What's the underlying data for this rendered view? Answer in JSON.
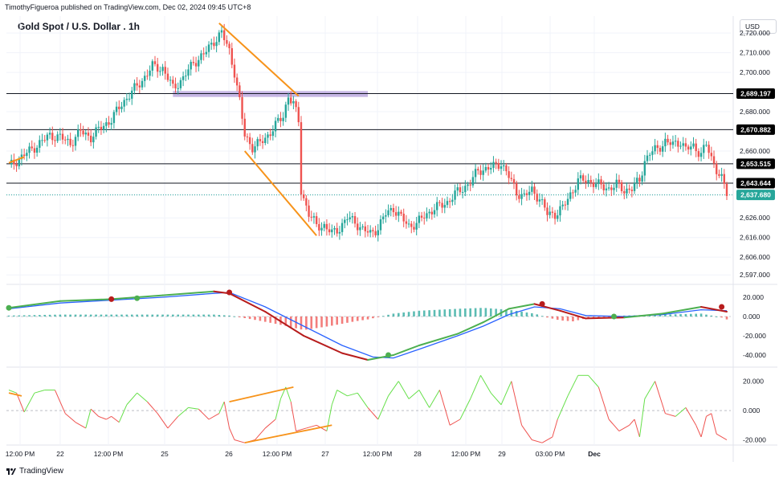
{
  "header": {
    "credit": "TimothyFigueroa published on TradingView.com, Dec 02, 2024 09:45 UTC+8",
    "title": "Gold Spot / U.S. Dollar . 1h",
    "currency": "USD"
  },
  "footer": {
    "brand": "TradingView"
  },
  "colors": {
    "bull": "#26a69a",
    "bear": "#ef5350",
    "pattern": "#f7931a",
    "zone": "#b39ddb",
    "wt_green": "#4caf50",
    "wt_blue": "#2962ff",
    "wt_red": "#b71c1c",
    "hist_pos": "#26a69a",
    "hist_neg": "#ef5350",
    "osc_up": "#66e04a",
    "osc_down": "#ef5350"
  },
  "chart_data": [
    {
      "type": "candlestick",
      "name": "price",
      "title": "Gold Spot / U.S. Dollar . 1h",
      "yticks": [
        2720,
        2710,
        2700,
        2689.197,
        2680,
        2670.882,
        2660,
        2653.515,
        2643.644,
        2637.68,
        2626,
        2616,
        2606,
        2597
      ],
      "ytick_labels": [
        "2,720.000",
        "2,710.000",
        "2,700.000",
        "2,689.197",
        "2,680.000",
        "2,670.882",
        "2,660.000",
        "2,653.515",
        "2,643.644",
        "2,637.680",
        "2,626.000",
        "2,616.000",
        "2,606.000",
        "2,597.000"
      ],
      "ylim": [
        2593,
        2727
      ],
      "grid": true,
      "horizontal_levels": [
        2689.197,
        2670.882,
        2653.515,
        2643.644
      ],
      "current_price": 2637.68,
      "zone": {
        "from": 2687.5,
        "to": 2690.5
      },
      "xticks": [
        "12:00 PM",
        "22",
        "12:00 PM",
        "25",
        "26",
        "12:00 PM",
        "27",
        "12:00 PM",
        "28",
        "12:00 PM",
        "29",
        "03:00 PM",
        "Dec"
      ],
      "key_points": [
        [
          0,
          2652
        ],
        [
          4,
          2656
        ],
        [
          8,
          2660
        ],
        [
          12,
          2664
        ],
        [
          16,
          2668
        ],
        [
          20,
          2667
        ],
        [
          24,
          2664
        ],
        [
          28,
          2670
        ],
        [
          32,
          2667
        ],
        [
          36,
          2672
        ],
        [
          40,
          2676
        ],
        [
          44,
          2684
        ],
        [
          48,
          2690
        ],
        [
          52,
          2696
        ],
        [
          56,
          2703
        ],
        [
          60,
          2702
        ],
        [
          64,
          2692
        ],
        [
          68,
          2697
        ],
        [
          72,
          2705
        ],
        [
          76,
          2709
        ],
        [
          80,
          2716
        ],
        [
          83,
          2720
        ],
        [
          86,
          2711
        ],
        [
          88,
          2700
        ],
        [
          90,
          2685
        ],
        [
          92,
          2668
        ],
        [
          95,
          2662
        ],
        [
          98,
          2664
        ],
        [
          101,
          2668
        ],
        [
          104,
          2673
        ],
        [
          107,
          2678
        ],
        [
          109,
          2688
        ],
        [
          111,
          2684
        ],
        [
          113,
          2675
        ],
        [
          114,
          2640
        ],
        [
          117,
          2628
        ],
        [
          120,
          2622
        ],
        [
          123,
          2622
        ],
        [
          126,
          2618
        ],
        [
          129,
          2621
        ],
        [
          132,
          2626
        ],
        [
          135,
          2624
        ],
        [
          138,
          2620
        ],
        [
          141,
          2618
        ],
        [
          144,
          2621
        ],
        [
          147,
          2628
        ],
        [
          150,
          2631
        ],
        [
          153,
          2626
        ],
        [
          156,
          2622
        ],
        [
          159,
          2623
        ],
        [
          162,
          2627
        ],
        [
          165,
          2630
        ],
        [
          168,
          2632
        ],
        [
          171,
          2634
        ],
        [
          174,
          2638
        ],
        [
          177,
          2641
        ],
        [
          180,
          2644
        ],
        [
          183,
          2650
        ],
        [
          186,
          2651
        ],
        [
          189,
          2652
        ],
        [
          192,
          2654
        ],
        [
          195,
          2647
        ],
        [
          198,
          2639
        ],
        [
          201,
          2637
        ],
        [
          204,
          2640
        ],
        [
          207,
          2636
        ],
        [
          210,
          2628
        ],
        [
          213,
          2628
        ],
        [
          216,
          2631
        ],
        [
          219,
          2638
        ],
        [
          222,
          2645
        ],
        [
          225,
          2645
        ],
        [
          228,
          2644
        ],
        [
          231,
          2642
        ],
        [
          234,
          2641
        ],
        [
          237,
          2643
        ],
        [
          240,
          2640
        ],
        [
          243,
          2641
        ],
        [
          246,
          2645
        ],
        [
          248,
          2655
        ],
        [
          250,
          2659
        ],
        [
          253,
          2661
        ],
        [
          256,
          2665
        ],
        [
          259,
          2663
        ],
        [
          262,
          2665
        ],
        [
          264,
          2661
        ],
        [
          267,
          2662
        ],
        [
          270,
          2659
        ],
        [
          272,
          2663
        ],
        [
          274,
          2656
        ],
        [
          276,
          2651
        ],
        [
          278,
          2646
        ],
        [
          280,
          2638
        ]
      ]
    },
    {
      "type": "line",
      "name": "wave-oscillator",
      "yticks": [
        20,
        0,
        -20,
        -40
      ],
      "ytick_labels": [
        "20.000",
        "0.000",
        "-20.000",
        "-40.000"
      ],
      "ylim": [
        -50,
        30
      ],
      "series": [
        {
          "key": "fast",
          "points": [
            [
              0,
              9
            ],
            [
              20,
              16
            ],
            [
              40,
              18
            ],
            [
              60,
              22
            ],
            [
              80,
              26
            ],
            [
              86,
              24
            ],
            [
              100,
              5
            ],
            [
              115,
              -20
            ],
            [
              130,
              -38
            ],
            [
              140,
              -45
            ],
            [
              150,
              -40
            ],
            [
              160,
              -30
            ],
            [
              175,
              -18
            ],
            [
              185,
              -6
            ],
            [
              195,
              8
            ],
            [
              205,
              13
            ],
            [
              215,
              6
            ],
            [
              225,
              -2
            ],
            [
              240,
              -1
            ],
            [
              255,
              3
            ],
            [
              270,
              10
            ],
            [
              280,
              5
            ]
          ]
        },
        {
          "key": "slow",
          "points": [
            [
              0,
              8
            ],
            [
              20,
              14
            ],
            [
              40,
              17
            ],
            [
              60,
              20
            ],
            [
              80,
              24
            ],
            [
              86,
              25
            ],
            [
              100,
              10
            ],
            [
              115,
              -10
            ],
            [
              130,
              -30
            ],
            [
              142,
              -42
            ],
            [
              150,
              -43
            ],
            [
              160,
              -34
            ],
            [
              175,
              -20
            ],
            [
              185,
              -10
            ],
            [
              195,
              2
            ],
            [
              205,
              10
            ],
            [
              215,
              8
            ],
            [
              225,
              1
            ],
            [
              240,
              0
            ],
            [
              255,
              2
            ],
            [
              270,
              7
            ],
            [
              280,
              6
            ]
          ]
        }
      ],
      "histogram": [
        [
          0,
          1
        ],
        [
          20,
          2
        ],
        [
          40,
          2
        ],
        [
          60,
          2
        ],
        [
          80,
          2
        ],
        [
          86,
          1
        ],
        [
          95,
          -3
        ],
        [
          105,
          -8
        ],
        [
          115,
          -14
        ],
        [
          125,
          -10
        ],
        [
          135,
          -5
        ],
        [
          140,
          -3
        ],
        [
          150,
          3
        ],
        [
          160,
          6
        ],
        [
          175,
          8
        ],
        [
          185,
          9
        ],
        [
          195,
          7
        ],
        [
          205,
          3
        ],
        [
          210,
          -1
        ],
        [
          215,
          -4
        ],
        [
          220,
          -5
        ],
        [
          225,
          -2
        ],
        [
          240,
          1
        ],
        [
          255,
          2
        ],
        [
          270,
          3
        ],
        [
          278,
          -1
        ],
        [
          280,
          -3
        ]
      ],
      "cross_dots": [
        {
          "x": 0,
          "y": 9,
          "type": "up"
        },
        {
          "x": 40,
          "y": 18,
          "type": "down"
        },
        {
          "x": 50,
          "y": 19,
          "type": "up"
        },
        {
          "x": 86,
          "y": 25,
          "type": "down"
        },
        {
          "x": 148,
          "y": -40,
          "type": "up"
        },
        {
          "x": 208,
          "y": 13,
          "type": "down"
        },
        {
          "x": 236,
          "y": 0,
          "type": "up"
        },
        {
          "x": 278,
          "y": 10,
          "type": "down"
        }
      ]
    },
    {
      "type": "line",
      "name": "momentum-oscillator",
      "yticks": [
        20,
        0,
        -20
      ],
      "ytick_labels": [
        "20.000",
        "0.000",
        "-20.000"
      ],
      "ylim": [
        -23,
        28
      ],
      "zero_line": true,
      "points": [
        [
          0,
          14
        ],
        [
          3,
          12
        ],
        [
          6,
          -1
        ],
        [
          10,
          12
        ],
        [
          14,
          14
        ],
        [
          18,
          14
        ],
        [
          22,
          -2
        ],
        [
          26,
          -8
        ],
        [
          30,
          -12
        ],
        [
          32,
          1
        ],
        [
          35,
          -4
        ],
        [
          38,
          -6
        ],
        [
          40,
          -4
        ],
        [
          43,
          -8
        ],
        [
          46,
          4
        ],
        [
          50,
          12
        ],
        [
          54,
          6
        ],
        [
          58,
          -2
        ],
        [
          62,
          -12
        ],
        [
          66,
          -4
        ],
        [
          70,
          2
        ],
        [
          74,
          1
        ],
        [
          78,
          -6
        ],
        [
          82,
          -2
        ],
        [
          84,
          6
        ],
        [
          86,
          -12
        ],
        [
          88,
          -20
        ],
        [
          92,
          -22
        ],
        [
          96,
          -20
        ],
        [
          100,
          -12
        ],
        [
          104,
          -6
        ],
        [
          106,
          8
        ],
        [
          108,
          16
        ],
        [
          110,
          6
        ],
        [
          112,
          -14
        ],
        [
          116,
          -12
        ],
        [
          120,
          -10
        ],
        [
          124,
          -14
        ],
        [
          126,
          4
        ],
        [
          128,
          14
        ],
        [
          132,
          10
        ],
        [
          136,
          12
        ],
        [
          140,
          2
        ],
        [
          144,
          -6
        ],
        [
          148,
          10
        ],
        [
          152,
          20
        ],
        [
          156,
          8
        ],
        [
          160,
          14
        ],
        [
          164,
          2
        ],
        [
          168,
          14
        ],
        [
          172,
          -10
        ],
        [
          176,
          -6
        ],
        [
          180,
          8
        ],
        [
          184,
          24
        ],
        [
          188,
          12
        ],
        [
          192,
          4
        ],
        [
          196,
          20
        ],
        [
          200,
          -10
        ],
        [
          204,
          -20
        ],
        [
          208,
          -22
        ],
        [
          212,
          -18
        ],
        [
          214,
          -6
        ],
        [
          218,
          10
        ],
        [
          222,
          24
        ],
        [
          226,
          24
        ],
        [
          230,
          16
        ],
        [
          234,
          -6
        ],
        [
          238,
          -14
        ],
        [
          242,
          -10
        ],
        [
          244,
          -6
        ],
        [
          246,
          -18
        ],
        [
          248,
          8
        ],
        [
          252,
          20
        ],
        [
          256,
          -2
        ],
        [
          260,
          -4
        ],
        [
          264,
          2
        ],
        [
          268,
          -10
        ],
        [
          270,
          -18
        ],
        [
          272,
          -4
        ],
        [
          274,
          -2
        ],
        [
          276,
          -16
        ],
        [
          280,
          -20
        ]
      ]
    }
  ]
}
